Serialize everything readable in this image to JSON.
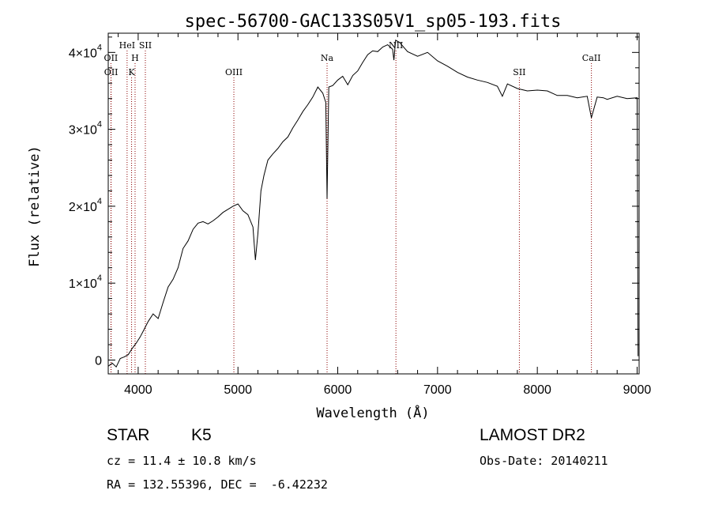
{
  "chart_data": {
    "type": "line",
    "title": "spec-56700-GAC133S05V1_sp05-193.fits",
    "xlabel": "Wavelength (Å)",
    "ylabel": "Flux (relative)",
    "xlim": [
      3700,
      9020
    ],
    "ylim": [
      -1800,
      42500
    ],
    "x_ticks": [
      4000,
      5000,
      6000,
      7000,
      8000,
      9000
    ],
    "x_tick_labels": [
      "4000",
      "5000",
      "6000",
      "7000",
      "8000",
      "9000"
    ],
    "y_ticks": [
      0,
      10000,
      20000,
      30000,
      40000
    ],
    "y_tick_labels": [
      {
        "mantissa": "0",
        "exponent": ""
      },
      {
        "mantissa": "1×10",
        "exponent": "4"
      },
      {
        "mantissa": "2×10",
        "exponent": "4"
      },
      {
        "mantissa": "3×10",
        "exponent": "4"
      },
      {
        "mantissa": "4×10",
        "exponent": "4"
      }
    ],
    "grid": false,
    "line_color": "#000000",
    "marker_color": "#8b0000",
    "series": [
      {
        "x": [
          3700,
          3740,
          3780,
          3820,
          3860,
          3900,
          3940,
          3980,
          4020,
          4060,
          4100,
          4150,
          4200,
          4250,
          4300,
          4350,
          4400,
          4450,
          4500,
          4550,
          4600,
          4650,
          4700,
          4750,
          4800,
          4850,
          4900,
          4950,
          5000,
          5050,
          5100,
          5150,
          5175,
          5200,
          5230,
          5260,
          5300,
          5350,
          5400,
          5450,
          5500,
          5550,
          5600,
          5650,
          5700,
          5750,
          5800,
          5850,
          5880,
          5893,
          5910,
          5950,
          6000,
          6050,
          6100,
          6150,
          6200,
          6250,
          6300,
          6350,
          6400,
          6450,
          6500,
          6550,
          6563,
          6580,
          6620,
          6700,
          6800,
          6900,
          7000,
          7100,
          7200,
          7300,
          7400,
          7500,
          7600,
          7650,
          7700,
          7800,
          7900,
          8000,
          8100,
          8200,
          8300,
          8400,
          8500,
          8542,
          8600,
          8662,
          8700,
          8800,
          8900,
          9000,
          9010
        ],
        "y": [
          -800,
          -400,
          -900,
          200,
          400,
          700,
          1500,
          2200,
          3000,
          4000,
          5000,
          6000,
          5400,
          7500,
          9500,
          10500,
          12000,
          14500,
          15500,
          17000,
          17800,
          18000,
          17700,
          18100,
          18600,
          19200,
          19600,
          20000,
          20300,
          19400,
          18900,
          17300,
          13000,
          16500,
          22000,
          24000,
          26000,
          26800,
          27500,
          28400,
          29000,
          30200,
          31200,
          32300,
          33200,
          34200,
          35500,
          34700,
          33500,
          21000,
          35500,
          35700,
          36400,
          36900,
          35800,
          37000,
          37600,
          38700,
          39700,
          40200,
          40100,
          40700,
          41000,
          40400,
          39000,
          41600,
          41300,
          40100,
          39500,
          40000,
          38900,
          38200,
          37400,
          36800,
          36400,
          36100,
          35600,
          34300,
          35900,
          35300,
          35000,
          35100,
          35000,
          34400,
          34400,
          34100,
          34300,
          31500,
          34200,
          34100,
          33900,
          34300,
          34000,
          34100,
          500
        ]
      }
    ],
    "line_markers": [
      {
        "label": "OII",
        "wavelength": 3727,
        "row": 2
      },
      {
        "label": "OII",
        "wavelength": 3729,
        "row": 3
      },
      {
        "label": "HeI",
        "wavelength": 3889,
        "row": 1
      },
      {
        "label": "K",
        "wavelength": 3934,
        "row": 3
      },
      {
        "label": "H",
        "wavelength": 3969,
        "row": 2
      },
      {
        "label": "SII",
        "wavelength": 4072,
        "row": 1
      },
      {
        "label": "OIII",
        "wavelength": 4959,
        "row": 3
      },
      {
        "label": "Na",
        "wavelength": 5893,
        "row": 2
      },
      {
        "label": "NII",
        "wavelength": 6583,
        "row": 1
      },
      {
        "label": "SII",
        "wavelength": 7820,
        "row": 3
      },
      {
        "label": "CaII",
        "wavelength": 8542,
        "row": 2
      }
    ]
  },
  "info": {
    "object_class": "STAR",
    "subclass": "K5",
    "survey": "LAMOST DR2",
    "redshift": "cz = 11.4 ± 10.8 km/s",
    "obs_date": "Obs-Date: 20140211",
    "coordinates": "RA = 132.55396, DEC =  -6.42232"
  }
}
